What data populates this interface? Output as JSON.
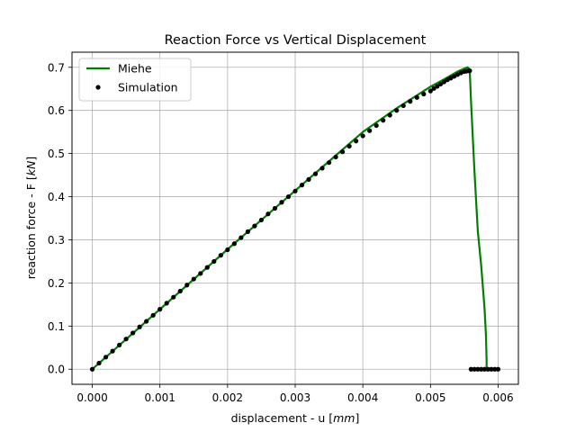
{
  "chart_data": {
    "type": "line",
    "title": "Reaction Force vs Vertical Displacement",
    "xlabel_prefix": "displacement - u [",
    "xlabel_unit": "mm",
    "xlabel_suffix": "]",
    "ylabel_prefix": "reaction force - F [",
    "ylabel_unit": "kN",
    "ylabel_suffix": "]",
    "xlim": [
      -0.0003,
      0.0063
    ],
    "ylim": [
      -0.035,
      0.735
    ],
    "xticks": [
      0.0,
      0.001,
      0.002,
      0.003,
      0.004,
      0.005,
      0.006
    ],
    "xtick_labels": [
      "0.000",
      "0.001",
      "0.002",
      "0.003",
      "0.004",
      "0.005",
      "0.006"
    ],
    "yticks": [
      0.0,
      0.1,
      0.2,
      0.3,
      0.4,
      0.5,
      0.6,
      0.7
    ],
    "ytick_labels": [
      "0.0",
      "0.1",
      "0.2",
      "0.3",
      "0.4",
      "0.5",
      "0.6",
      "0.7"
    ],
    "grid": true,
    "legend_position": "top-left",
    "series": [
      {
        "name": "Miehe",
        "style": "line",
        "color": "#008000",
        "x": [
          0.0,
          0.001,
          0.002,
          0.003,
          0.004,
          0.0045,
          0.005,
          0.0052,
          0.0054,
          0.0055,
          0.00555,
          0.00558,
          0.0056,
          0.00565,
          0.0057,
          0.00575,
          0.0058,
          0.00582,
          0.00583,
          0.00583
        ],
        "y": [
          0.0,
          0.139,
          0.278,
          0.414,
          0.55,
          0.605,
          0.655,
          0.672,
          0.69,
          0.697,
          0.7,
          0.695,
          0.62,
          0.46,
          0.32,
          0.24,
          0.14,
          0.08,
          0.02,
          0.0
        ]
      },
      {
        "name": "Simulation",
        "style": "markers",
        "color": "#000000",
        "x": [
          0.0,
          0.0001,
          0.0002,
          0.0003,
          0.0004,
          0.0005,
          0.0006,
          0.0007,
          0.0008,
          0.0009,
          0.001,
          0.0011,
          0.0012,
          0.0013,
          0.0014,
          0.0015,
          0.0016,
          0.0017,
          0.0018,
          0.0019,
          0.002,
          0.0021,
          0.0022,
          0.0023,
          0.0024,
          0.0025,
          0.0026,
          0.0027,
          0.0028,
          0.0029,
          0.003,
          0.0031,
          0.0032,
          0.0033,
          0.0034,
          0.0035,
          0.0036,
          0.0037,
          0.0038,
          0.0039,
          0.004,
          0.0041,
          0.0042,
          0.0043,
          0.0044,
          0.0045,
          0.0046,
          0.0047,
          0.0048,
          0.0049,
          0.005,
          0.00505,
          0.0051,
          0.00515,
          0.0052,
          0.00525,
          0.0053,
          0.00535,
          0.0054,
          0.00545,
          0.0055,
          0.00553,
          0.00556,
          0.00558,
          0.0056,
          0.00565,
          0.0057,
          0.00575,
          0.0058,
          0.00585,
          0.0059,
          0.00595,
          0.006
        ],
        "y": [
          0.0,
          0.014,
          0.028,
          0.042,
          0.056,
          0.07,
          0.084,
          0.098,
          0.111,
          0.125,
          0.139,
          0.153,
          0.167,
          0.181,
          0.195,
          0.209,
          0.222,
          0.236,
          0.25,
          0.264,
          0.277,
          0.291,
          0.305,
          0.319,
          0.332,
          0.346,
          0.36,
          0.373,
          0.387,
          0.4,
          0.413,
          0.427,
          0.44,
          0.453,
          0.466,
          0.479,
          0.492,
          0.504,
          0.517,
          0.529,
          0.541,
          0.553,
          0.565,
          0.577,
          0.589,
          0.6,
          0.611,
          0.621,
          0.63,
          0.638,
          0.645,
          0.651,
          0.656,
          0.661,
          0.666,
          0.671,
          0.675,
          0.679,
          0.683,
          0.687,
          0.69,
          0.691,
          0.692,
          0.692,
          0.0,
          0.0,
          0.0,
          0.0,
          0.0,
          0.0,
          0.0,
          0.0,
          0.0
        ]
      }
    ]
  }
}
